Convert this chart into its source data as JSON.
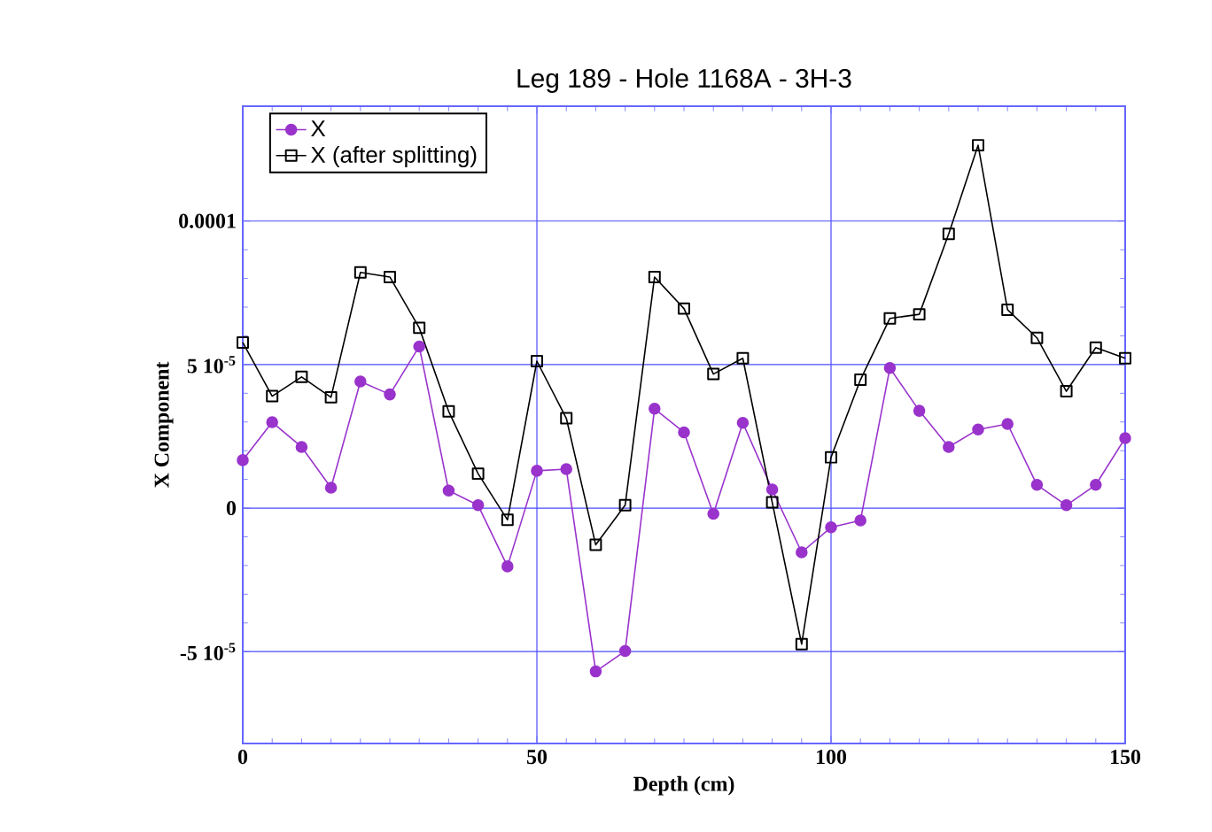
{
  "chart_data": {
    "type": "line",
    "title": "Leg 189 - Hole 1168A - 3H-3",
    "xlabel": "Depth (cm)",
    "ylabel": "X Component",
    "x": [
      0,
      5,
      10,
      15,
      20,
      25,
      30,
      35,
      40,
      45,
      50,
      55,
      60,
      65,
      70,
      75,
      80,
      85,
      90,
      95,
      100,
      105,
      110,
      115,
      120,
      125,
      130,
      135,
      140,
      145,
      150
    ],
    "series": [
      {
        "name": "X",
        "color": "#9933cc",
        "marker": "circle",
        "values": [
          1.67e-05,
          2.99e-05,
          2.13e-05,
          7.1e-06,
          4.41e-05,
          3.96e-05,
          5.63e-05,
          6.1e-06,
          1e-06,
          -2.03e-05,
          1.3e-05,
          1.36e-05,
          -5.69e-05,
          -4.98e-05,
          3.46e-05,
          2.64e-05,
          -2e-06,
          2.97e-05,
          6.5e-06,
          -1.54e-05,
          -6.7e-06,
          -4.3e-06,
          4.88e-05,
          3.39e-05,
          2.13e-05,
          2.74e-05,
          2.93e-05,
          8.1e-06,
          1e-06,
          8.1e-06,
          2.44e-05
        ]
      },
      {
        "name": "X (after splitting)",
        "color": "#000000",
        "marker": "square",
        "values": [
          5.77e-05,
          3.9e-05,
          4.57e-05,
          3.86e-05,
          8.21e-05,
          8.05e-05,
          6.28e-05,
          3.37e-05,
          1.2e-05,
          -4.1e-06,
          5.12e-05,
          3.13e-05,
          -1.28e-05,
          1e-06,
          8.05e-05,
          6.95e-05,
          4.67e-05,
          5.22e-05,
          2e-06,
          -4.74e-05,
          1.77e-05,
          4.47e-05,
          6.61e-05,
          6.75e-05,
          9.55e-05,
          0.0001264,
          6.91e-05,
          5.93e-05,
          4.07e-05,
          5.59e-05,
          5.22e-05
        ]
      }
    ],
    "xlim": [
      0,
      150
    ],
    "xticks": [
      0,
      50,
      100,
      150
    ],
    "ylim": [
      -8.2e-05,
      0.00014
    ],
    "yticks": [
      {
        "value": -5e-05,
        "label": "-5 10$^{-5}$"
      },
      0,
      {
        "value": 5e-05,
        "label": "5 10$^{-5}$"
      },
      0.0001
    ],
    "grid": true,
    "legend": "top left",
    "line_style": "solid"
  }
}
